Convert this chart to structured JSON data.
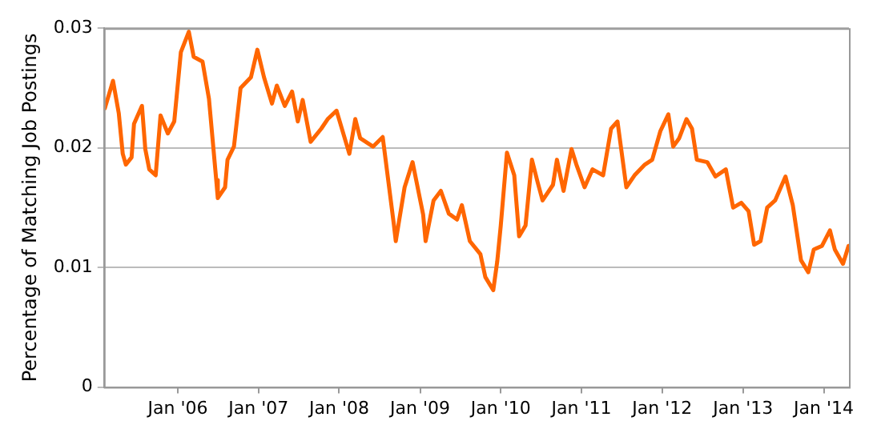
{
  "chart_data": {
    "type": "line",
    "ylabel": "Percentage of Matching Job Postings",
    "x": [
      "2005-02-05",
      "2005-03-14",
      "2005-04-09",
      "2005-04-27",
      "2005-05-11",
      "2005-06-06",
      "2005-06-17",
      "2005-07-23",
      "2005-08-07",
      "2005-08-25",
      "2005-09-23",
      "2005-10-15",
      "2005-11-17",
      "2005-12-16",
      "2006-01-15",
      "2006-02-20",
      "2006-03-14",
      "2006-04-23",
      "2006-05-22",
      "2006-06-24",
      "2006-07-01",
      "2006-08-03",
      "2006-08-14",
      "2006-09-12",
      "2006-10-12",
      "2006-11-28",
      "2006-12-27",
      "2007-01-26",
      "2007-03-03",
      "2007-03-25",
      "2007-04-30",
      "2007-06-02",
      "2007-06-28",
      "2007-07-20",
      "2007-08-25",
      "2007-10-12",
      "2007-11-10",
      "2007-12-20",
      "2008-02-16",
      "2008-03-14",
      "2008-04-05",
      "2008-06-02",
      "2008-07-16",
      "2008-09-05",
      "2008-09-13",
      "2008-10-23",
      "2008-11-28",
      "2009-01-15",
      "2009-01-26",
      "2009-03-03",
      "2009-04-05",
      "2009-05-11",
      "2009-06-17",
      "2009-07-09",
      "2009-08-14",
      "2009-10-01",
      "2009-10-23",
      "2009-11-28",
      "2009-12-16",
      "2010-01-01",
      "2010-01-29",
      "2010-03-03",
      "2010-03-25",
      "2010-04-23",
      "2010-05-22",
      "2010-06-17",
      "2010-07-09",
      "2010-08-25",
      "2010-09-12",
      "2010-10-12",
      "2010-11-17",
      "2010-12-09",
      "2011-01-15",
      "2011-02-20",
      "2011-04-09",
      "2011-05-15",
      "2011-06-13",
      "2011-07-23",
      "2011-08-29",
      "2011-10-15",
      "2011-11-17",
      "2011-12-24",
      "2012-01-29",
      "2012-02-20",
      "2012-03-18",
      "2012-04-20",
      "2012-05-15",
      "2012-06-06",
      "2012-07-23",
      "2012-08-29",
      "2012-10-15",
      "2012-11-17",
      "2012-12-24",
      "2013-01-26",
      "2013-02-20",
      "2013-03-21",
      "2013-04-20",
      "2013-05-26",
      "2013-07-12",
      "2013-08-14",
      "2013-09-20",
      "2013-10-23",
      "2013-11-17",
      "2013-12-24",
      "2014-01-29",
      "2014-02-20",
      "2014-03-29",
      "2014-04-23"
    ],
    "series": [
      {
        "color": "#ff6600",
        "values": [
          0.0233,
          0.0256,
          0.0229,
          0.0195,
          0.0186,
          0.0192,
          0.022,
          0.0235,
          0.0199,
          0.0182,
          0.0177,
          0.0227,
          0.0212,
          0.0222,
          0.028,
          0.0297,
          0.0276,
          0.0272,
          0.0241,
          0.0173,
          0.0158,
          0.0167,
          0.019,
          0.0201,
          0.025,
          0.0259,
          0.0282,
          0.0259,
          0.0237,
          0.0252,
          0.0235,
          0.0247,
          0.0222,
          0.024,
          0.0205,
          0.0216,
          0.0224,
          0.0231,
          0.0195,
          0.0224,
          0.0208,
          0.0201,
          0.0209,
          0.0135,
          0.0122,
          0.0167,
          0.0188,
          0.0144,
          0.0122,
          0.0156,
          0.0164,
          0.0145,
          0.014,
          0.0152,
          0.0122,
          0.0111,
          0.0092,
          0.0081,
          0.0105,
          0.0135,
          0.0196,
          0.0177,
          0.0126,
          0.0135,
          0.019,
          0.0171,
          0.0156,
          0.0169,
          0.019,
          0.0164,
          0.0199,
          0.0186,
          0.0167,
          0.0182,
          0.0177,
          0.0216,
          0.0222,
          0.0167,
          0.0177,
          0.0186,
          0.019,
          0.0214,
          0.0228,
          0.0201,
          0.0208,
          0.0224,
          0.0216,
          0.019,
          0.0188,
          0.0176,
          0.0182,
          0.015,
          0.0154,
          0.0147,
          0.0119,
          0.0122,
          0.015,
          0.0156,
          0.0176,
          0.0152,
          0.0106,
          0.0096,
          0.0115,
          0.0118,
          0.0131,
          0.0115,
          0.0103,
          0.0118
        ]
      }
    ],
    "xlim": [
      "2005-02-01",
      "2014-04-25"
    ],
    "xticks": [
      {
        "value": "2006-01-01",
        "label": "Jan '06"
      },
      {
        "value": "2007-01-01",
        "label": "Jan '07"
      },
      {
        "value": "2008-01-01",
        "label": "Jan '08"
      },
      {
        "value": "2009-01-01",
        "label": "Jan '09"
      },
      {
        "value": "2010-01-01",
        "label": "Jan '10"
      },
      {
        "value": "2011-01-01",
        "label": "Jan '11"
      },
      {
        "value": "2012-01-01",
        "label": "Jan '12"
      },
      {
        "value": "2013-01-01",
        "label": "Jan '13"
      },
      {
        "value": "2014-01-01",
        "label": "Jan '14"
      }
    ],
    "ylim": [
      0,
      0.03
    ],
    "yticks": [
      0,
      0.01,
      0.02,
      0.03
    ],
    "grid": "y",
    "legend": false,
    "marker": "none",
    "line_style": "solid"
  }
}
